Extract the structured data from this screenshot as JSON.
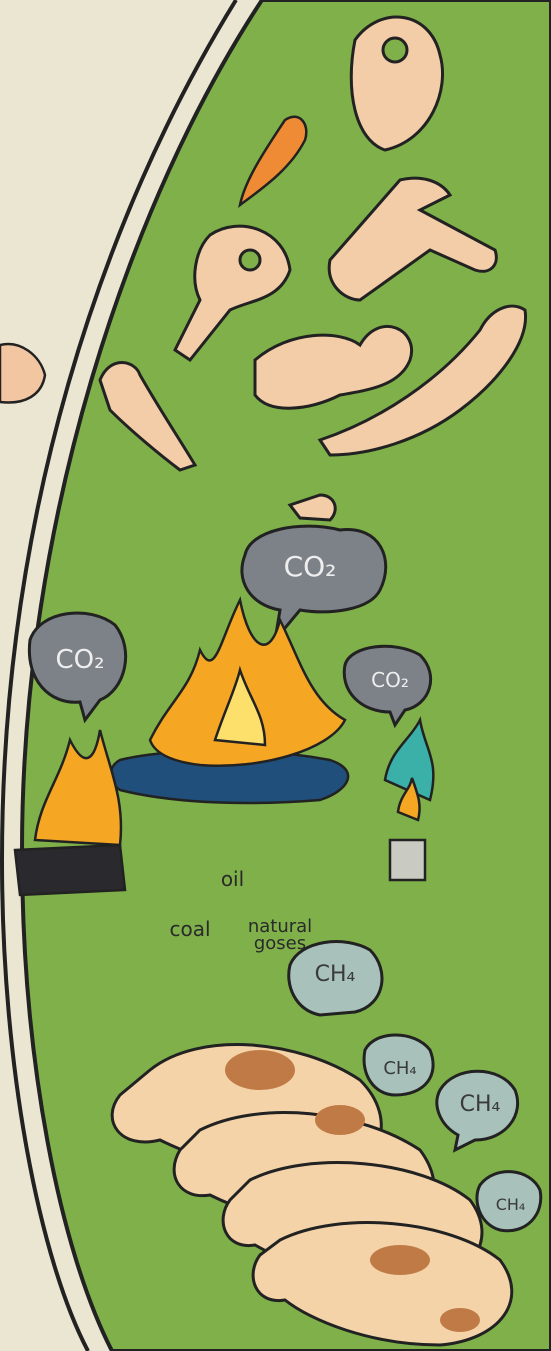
{
  "fossil_fuels": {
    "co2_clouds": [
      {
        "label": "CO₂"
      },
      {
        "label": "CO₂"
      },
      {
        "label": "CO₂"
      }
    ],
    "oil": "oil",
    "coal": "coal",
    "natural_gases": "natural goses"
  },
  "livestock": {
    "ch4_clouds": [
      {
        "label": "CH₄"
      },
      {
        "label": "CH₄"
      },
      {
        "label": "CH₄"
      },
      {
        "label": "CH₄"
      }
    ]
  }
}
